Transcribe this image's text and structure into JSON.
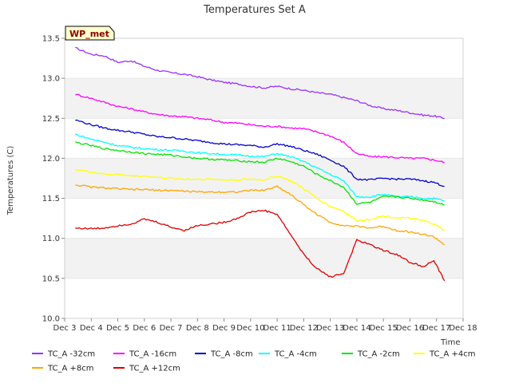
{
  "chart_data": {
    "type": "line",
    "title": "Temperatures Set A",
    "xlabel": "Time",
    "ylabel": "Temperatures (C)",
    "badge": "WP_met",
    "xlim": [
      3,
      18
    ],
    "ylim": [
      10.0,
      13.5
    ],
    "x_ticks": [
      3,
      4,
      5,
      6,
      7,
      8,
      9,
      10,
      11,
      12,
      13,
      14,
      15,
      16,
      17,
      18
    ],
    "x_tick_labels": [
      "Dec 3",
      "Dec 4",
      "Dec 5",
      "Dec 6",
      "Dec 7",
      "Dec 8",
      "Dec 9",
      "Dec 10",
      "Dec 11",
      "Dec 12",
      "Dec 13",
      "Dec 14",
      "Dec 15",
      "Dec 16",
      "Dec 17",
      "Dec 18"
    ],
    "y_ticks": [
      10.0,
      10.5,
      11.0,
      11.5,
      12.0,
      12.5,
      13.0,
      13.5
    ],
    "y_tick_labels": [
      "10.0",
      "10.5",
      "11.0",
      "11.5",
      "12.0",
      "12.5",
      "13.0",
      "13.5"
    ],
    "x": [
      3.4,
      4.0,
      4.5,
      5.0,
      5.5,
      6.0,
      6.5,
      7.0,
      7.5,
      8.0,
      8.5,
      9.0,
      9.5,
      10.0,
      10.5,
      11.0,
      11.5,
      12.0,
      12.5,
      13.0,
      13.5,
      14.0,
      14.5,
      15.0,
      15.5,
      16.0,
      16.5,
      16.9,
      17.3
    ],
    "series": [
      {
        "name": "TC_A -32cm",
        "color": "#9b30ff",
        "values": [
          13.38,
          13.3,
          13.28,
          13.2,
          13.22,
          13.15,
          13.1,
          13.07,
          13.05,
          13.02,
          12.98,
          12.95,
          12.93,
          12.9,
          12.88,
          12.9,
          12.87,
          12.85,
          12.82,
          12.8,
          12.76,
          12.72,
          12.66,
          12.62,
          12.6,
          12.57,
          12.54,
          12.53,
          12.5
        ]
      },
      {
        "name": "TC_A -16cm",
        "color": "#ff00ff",
        "values": [
          12.8,
          12.75,
          12.7,
          12.65,
          12.62,
          12.58,
          12.55,
          12.53,
          12.52,
          12.5,
          12.48,
          12.45,
          12.44,
          12.42,
          12.4,
          12.4,
          12.38,
          12.37,
          12.33,
          12.28,
          12.2,
          12.06,
          12.02,
          12.02,
          12.01,
          12.0,
          12.0,
          11.98,
          11.95
        ]
      },
      {
        "name": "TC_A -8cm",
        "color": "#0000cd",
        "values": [
          12.48,
          12.42,
          12.38,
          12.35,
          12.33,
          12.3,
          12.27,
          12.26,
          12.24,
          12.22,
          12.2,
          12.18,
          12.17,
          12.16,
          12.14,
          12.18,
          12.15,
          12.1,
          12.05,
          11.98,
          11.9,
          11.74,
          11.73,
          11.75,
          11.74,
          11.74,
          11.72,
          11.7,
          11.65
        ]
      },
      {
        "name": "TC_A -4cm",
        "color": "#00ffff",
        "values": [
          12.3,
          12.24,
          12.2,
          12.16,
          12.14,
          12.12,
          12.11,
          12.1,
          12.09,
          12.07,
          12.06,
          12.05,
          12.04,
          12.03,
          12.02,
          12.06,
          12.02,
          11.96,
          11.88,
          11.8,
          11.72,
          11.52,
          11.52,
          11.55,
          11.52,
          11.52,
          11.5,
          11.5,
          11.47
        ]
      },
      {
        "name": "TC_A -2cm",
        "color": "#00e400",
        "values": [
          12.2,
          12.16,
          12.12,
          12.1,
          12.08,
          12.06,
          12.05,
          12.04,
          12.02,
          12.0,
          11.99,
          11.98,
          11.97,
          11.96,
          11.95,
          12.0,
          11.96,
          11.9,
          11.8,
          11.72,
          11.64,
          11.43,
          11.45,
          11.52,
          11.52,
          11.5,
          11.48,
          11.46,
          11.42
        ]
      },
      {
        "name": "TC_A +4cm",
        "color": "#ffff00",
        "values": [
          11.86,
          11.83,
          11.8,
          11.8,
          11.78,
          11.78,
          11.76,
          11.75,
          11.74,
          11.74,
          11.74,
          11.73,
          11.73,
          11.74,
          11.73,
          11.78,
          11.72,
          11.62,
          11.5,
          11.4,
          11.34,
          11.22,
          11.24,
          11.28,
          11.26,
          11.25,
          11.22,
          11.18,
          11.1
        ]
      },
      {
        "name": "TC_A +8cm",
        "color": "#ffa500",
        "values": [
          11.67,
          11.64,
          11.63,
          11.62,
          11.61,
          11.61,
          11.6,
          11.6,
          11.59,
          11.58,
          11.58,
          11.58,
          11.58,
          11.6,
          11.6,
          11.65,
          11.55,
          11.42,
          11.3,
          11.2,
          11.16,
          11.15,
          11.13,
          11.15,
          11.1,
          11.08,
          11.05,
          11.02,
          10.92
        ]
      },
      {
        "name": "TC_A +12cm",
        "color": "#dd0000",
        "values": [
          11.13,
          11.12,
          11.13,
          11.16,
          11.18,
          11.24,
          11.2,
          11.14,
          11.1,
          11.16,
          11.18,
          11.2,
          11.25,
          11.33,
          11.35,
          11.3,
          11.05,
          10.8,
          10.62,
          10.52,
          10.56,
          10.98,
          10.92,
          10.85,
          10.8,
          10.7,
          10.65,
          10.72,
          10.47
        ]
      }
    ],
    "legend_position": "bottom",
    "grid": "horizontal bands"
  }
}
